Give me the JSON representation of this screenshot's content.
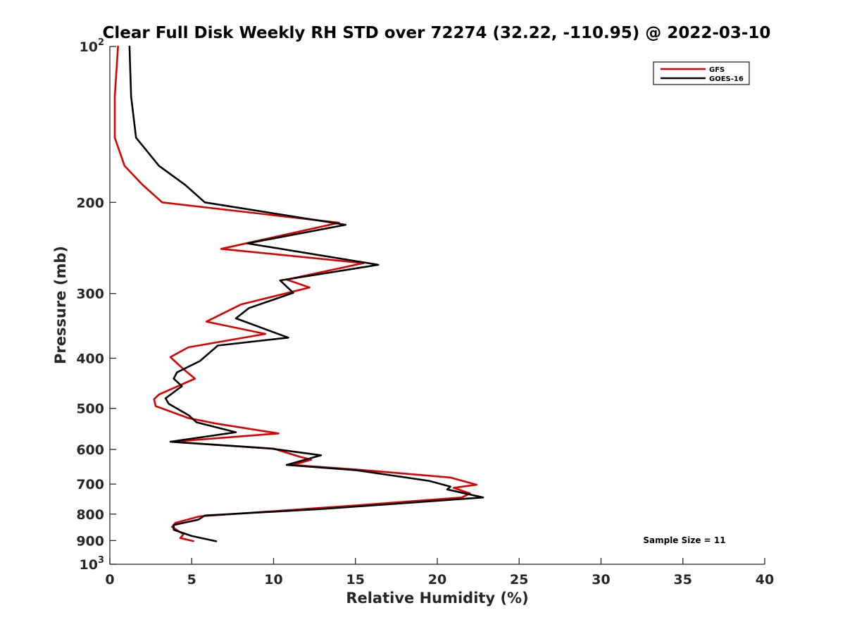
{
  "chart_data": {
    "type": "line",
    "title": "Clear Full Disk Weekly RH STD over 72274 (32.22, -110.95) @ 2022-03-10",
    "xlabel": "Relative Humidity (%)",
    "ylabel": "Pressure (mb)",
    "xlim": [
      0,
      40
    ],
    "ylim": [
      100,
      1000
    ],
    "y_scale": "log",
    "y_reversed": true,
    "x_ticks": [
      "0",
      "5",
      "10",
      "15",
      "20",
      "25",
      "30",
      "35",
      "40"
    ],
    "y_ticks": [
      {
        "value": 100,
        "base": "10",
        "exp": "2"
      },
      {
        "value": 200,
        "label": "200"
      },
      {
        "value": 300,
        "label": "300"
      },
      {
        "value": 400,
        "label": "400"
      },
      {
        "value": 500,
        "label": "500"
      },
      {
        "value": 600,
        "label": "600"
      },
      {
        "value": 700,
        "label": "700"
      },
      {
        "value": 800,
        "label": "800"
      },
      {
        "value": 900,
        "label": "900"
      },
      {
        "value": 1000,
        "base": "10",
        "exp": "3"
      }
    ],
    "legend_position": "top-right",
    "grid": false,
    "annotation": "Sample Size = 11",
    "series": [
      {
        "name": "GFS",
        "color": "#dd0000",
        "points": [
          [
            0.5,
            100
          ],
          [
            0.3,
            125
          ],
          [
            0.3,
            150
          ],
          [
            0.9,
            170
          ],
          [
            2.0,
            185
          ],
          [
            3.2,
            200
          ],
          [
            14.0,
            219
          ],
          [
            6.8,
            246
          ],
          [
            15.5,
            262
          ],
          [
            10.8,
            282
          ],
          [
            12.2,
            292
          ],
          [
            8.0,
            315
          ],
          [
            5.9,
            340
          ],
          [
            9.5,
            359
          ],
          [
            4.8,
            381
          ],
          [
            3.7,
            398
          ],
          [
            4.5,
            420
          ],
          [
            5.2,
            438
          ],
          [
            3.0,
            470
          ],
          [
            2.7,
            480
          ],
          [
            2.8,
            495
          ],
          [
            4.8,
            522
          ],
          [
            6.5,
            535
          ],
          [
            10.3,
            559
          ],
          [
            3.8,
            580
          ],
          [
            10.0,
            598
          ],
          [
            11.6,
            620
          ],
          [
            12.3,
            628
          ],
          [
            11.2,
            643
          ],
          [
            15.0,
            656
          ],
          [
            20.8,
            680
          ],
          [
            22.4,
            702
          ],
          [
            21.0,
            712
          ],
          [
            22.0,
            730
          ],
          [
            21.5,
            743
          ],
          [
            15.0,
            770
          ],
          [
            5.5,
            808
          ],
          [
            4.0,
            832
          ],
          [
            3.8,
            847
          ],
          [
            4.5,
            875
          ],
          [
            4.3,
            890
          ],
          [
            5.1,
            902
          ]
        ]
      },
      {
        "name": "GOES-16",
        "color": "#000000",
        "points": [
          [
            1.2,
            100
          ],
          [
            1.3,
            125
          ],
          [
            1.6,
            150
          ],
          [
            3.0,
            170
          ],
          [
            4.6,
            185
          ],
          [
            5.8,
            200
          ],
          [
            14.4,
            221
          ],
          [
            8.4,
            240
          ],
          [
            16.4,
            264
          ],
          [
            10.4,
            283
          ],
          [
            11.2,
            299
          ],
          [
            8.5,
            320
          ],
          [
            7.7,
            335
          ],
          [
            10.9,
            365
          ],
          [
            6.6,
            378
          ],
          [
            5.5,
            405
          ],
          [
            4.1,
            426
          ],
          [
            3.9,
            438
          ],
          [
            4.4,
            453
          ],
          [
            3.4,
            478
          ],
          [
            3.6,
            490
          ],
          [
            4.8,
            515
          ],
          [
            5.3,
            532
          ],
          [
            7.7,
            556
          ],
          [
            3.7,
            580
          ],
          [
            9.9,
            598
          ],
          [
            12.9,
            616
          ],
          [
            10.8,
            643
          ],
          [
            15.0,
            658
          ],
          [
            19.5,
            690
          ],
          [
            20.8,
            708
          ],
          [
            20.6,
            717
          ],
          [
            22.8,
            743
          ],
          [
            13.0,
            782
          ],
          [
            5.8,
            805
          ],
          [
            5.4,
            820
          ],
          [
            3.9,
            840
          ],
          [
            3.9,
            858
          ],
          [
            5.0,
            882
          ],
          [
            6.5,
            903
          ]
        ]
      }
    ]
  }
}
